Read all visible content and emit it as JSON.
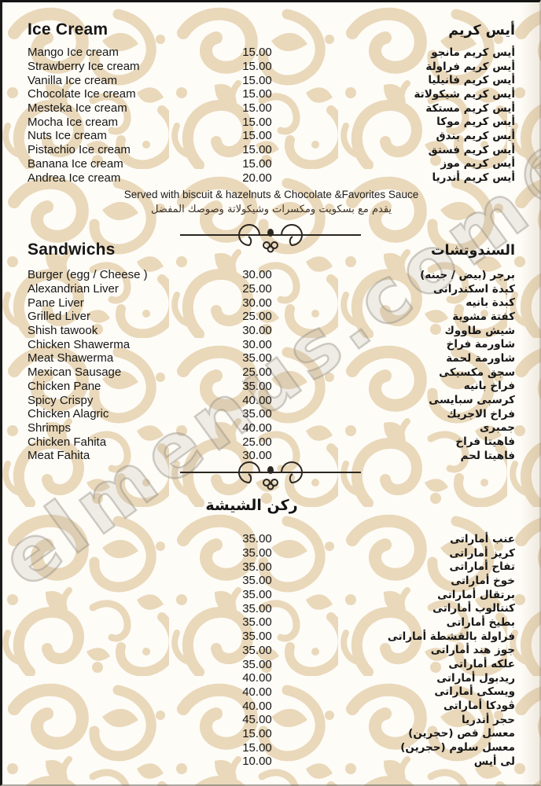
{
  "watermark": {
    "text": "elmenus.com®"
  },
  "colors": {
    "pattern_beige": "#e9d8ba",
    "page_background": "#fdfbf5",
    "text": "#171717",
    "watermark_gray": "#928c84",
    "divider_ink": "#2b2620"
  },
  "icons": {
    "divider": "scroll-ornament-divider-icon",
    "background": "damask-floral-pattern"
  },
  "sections": [
    {
      "id": "ice-cream",
      "title_en": "Ice Cream",
      "title_ar": "أيس كريم",
      "items": [
        {
          "en": "Mango Ice cream",
          "price": "15.00",
          "ar": "أيس كريم مانجو"
        },
        {
          "en": "Strawberry Ice cream",
          "price": "15.00",
          "ar": "أيس كريم فراولة"
        },
        {
          "en": "Vanilla Ice cream",
          "price": "15.00",
          "ar": "أيس كريم فانيليا"
        },
        {
          "en": "Chocolate Ice cream",
          "price": "15.00",
          "ar": "أيس كريم شيكولاتة"
        },
        {
          "en": "Mesteka Ice cream",
          "price": "15.00",
          "ar": "أيس كريم مستكة"
        },
        {
          "en": "Mocha Ice cream",
          "price": "15.00",
          "ar": "أيس كريم موكا"
        },
        {
          "en": "Nuts Ice cream",
          "price": "15.00",
          "ar": "أيس كريم بندق"
        },
        {
          "en": "Pistachio Ice cream",
          "price": "15.00",
          "ar": "أيس كريم فستق"
        },
        {
          "en": "Banana Ice cream",
          "price": "15.00",
          "ar": "أيس كريم موز"
        },
        {
          "en": "Andrea Ice cream",
          "price": "20.00",
          "ar": "أيس كريم أندريا"
        }
      ],
      "note_en": "Served with biscuit & hazelnuts & Chocolate &Favorites Sauce",
      "note_ar": "يقدم مع بسكويت ومكسرات وشيكولاتة وصوصك المفضل"
    },
    {
      "id": "sandwiches",
      "title_en": "Sandwichs",
      "title_ar": "السندوتشات",
      "items": [
        {
          "en": "Burger (egg / Cheese )",
          "price": "30.00",
          "ar": "برجر (بيض / جبنه)"
        },
        {
          "en": "Alexandrian Liver",
          "price": "25.00",
          "ar": "كبدة اسكندرانى"
        },
        {
          "en": "Pane Liver",
          "price": "30.00",
          "ar": "كبدة بانيه"
        },
        {
          "en": "Grilled Liver",
          "price": "25.00",
          "ar": "كفتة مشوية"
        },
        {
          "en": "Shish tawook",
          "price": "30.00",
          "ar": "شيش طاووك"
        },
        {
          "en": "Chicken Shawerma",
          "price": "30.00",
          "ar": "شاورمة فراخ"
        },
        {
          "en": "Meat Shawerma",
          "price": "35.00",
          "ar": "شاورمة لحمة"
        },
        {
          "en": "Mexican Sausage",
          "price": "25.00",
          "ar": "سجق مكسيكى"
        },
        {
          "en": "Chicken Pane",
          "price": "35.00",
          "ar": "فراخ بانيه"
        },
        {
          "en": "Spicy Crispy",
          "price": "40.00",
          "ar": "كرسبى سبايسى"
        },
        {
          "en": "Chicken Alagric",
          "price": "35.00",
          "ar": "فراخ الاجريك"
        },
        {
          "en": "Shrimps",
          "price": "40.00",
          "ar": "جمبرى"
        },
        {
          "en": "Chicken Fahita",
          "price": "25.00",
          "ar": "فاهيتا فراخ"
        },
        {
          "en": "Meat Fahita",
          "price": "30.00",
          "ar": "فاهيتا لحم"
        }
      ]
    },
    {
      "id": "shisha",
      "title_ar": "ركن الشيشة",
      "items": [
        {
          "en": "",
          "price": "35.00",
          "ar": "عنب أماراتى"
        },
        {
          "en": "",
          "price": "35.00",
          "ar": "كريز أماراتى"
        },
        {
          "en": "",
          "price": "35.00",
          "ar": "تفاح أماراتى"
        },
        {
          "en": "",
          "price": "35.00",
          "ar": "خوخ أماراتى"
        },
        {
          "en": "",
          "price": "35.00",
          "ar": "برتقال أماراتى"
        },
        {
          "en": "",
          "price": "35.00",
          "ar": "كنتالوب أماراتى"
        },
        {
          "en": "",
          "price": "35.00",
          "ar": "بطيخ أماراتى"
        },
        {
          "en": "",
          "price": "35.00",
          "ar": "فراولة بالقشطة أماراتى"
        },
        {
          "en": "",
          "price": "35.00",
          "ar": "جوز هند أماراتى"
        },
        {
          "en": "",
          "price": "35.00",
          "ar": "علكه أماراتى"
        },
        {
          "en": "",
          "price": "40.00",
          "ar": "ريدبول أماراتى"
        },
        {
          "en": "",
          "price": "40.00",
          "ar": "ويسكى أماراتى"
        },
        {
          "en": "",
          "price": "40.00",
          "ar": "ڤودكا أماراتى"
        },
        {
          "en": "",
          "price": "45.00",
          "ar": "حجر أندريا"
        },
        {
          "en": "",
          "price": "15.00",
          "ar": "معسل قص (حجرين)"
        },
        {
          "en": "",
          "price": "15.00",
          "ar": "معسل سلوم (حجرين)"
        },
        {
          "en": "",
          "price": "10.00",
          "ar": "لى أيس"
        }
      ]
    }
  ]
}
